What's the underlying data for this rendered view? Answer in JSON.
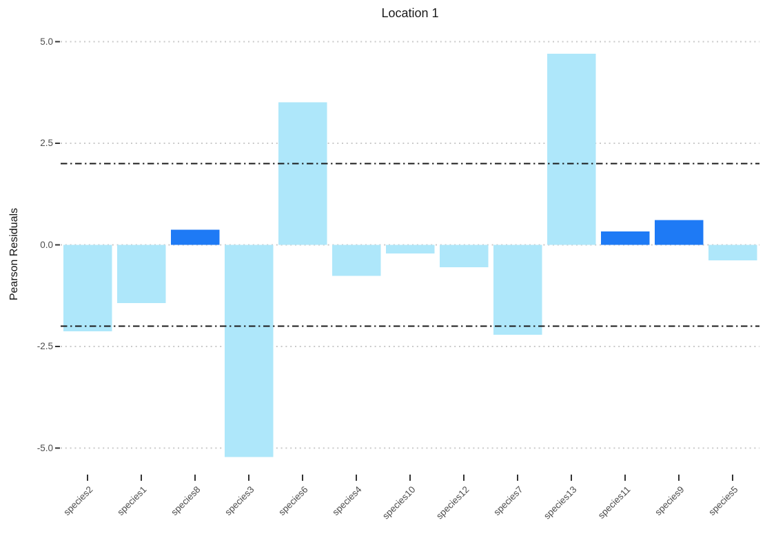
{
  "title": "Location 1",
  "y_axis": {
    "label": "Pearson Residuals",
    "tick_labels": [
      "5.0",
      "2.5",
      "0.0",
      "-2.5",
      "-5.0"
    ],
    "tick_values": [
      5.0,
      2.5,
      0.0,
      -2.5,
      -5.0
    ]
  },
  "chart_data": {
    "type": "bar",
    "title": "Location 1",
    "xlabel": "",
    "ylabel": "Pearson Residuals",
    "categories": [
      "species2",
      "species1",
      "species8",
      "species3",
      "species6",
      "species4",
      "species10",
      "species12",
      "species7",
      "species13",
      "species11",
      "species9",
      "species5"
    ],
    "values": [
      -2.13,
      -1.43,
      0.37,
      -5.22,
      3.51,
      -0.76,
      -0.21,
      -0.55,
      -2.21,
      4.7,
      0.33,
      0.61,
      -0.38
    ],
    "bar_color_keys": [
      "light",
      "light",
      "dark",
      "light",
      "light",
      "light",
      "light",
      "light",
      "light",
      "light",
      "dark",
      "dark",
      "light"
    ],
    "colors": {
      "light": "#AEE7FA",
      "dark": "#1E7AF5",
      "grid": "#C9C9C9",
      "threshold": "#1A1A1A",
      "tick_mark": "#333333",
      "tick_text": "#4D4D4D"
    },
    "ylim": [
      -5.72,
      5.2
    ],
    "y_gridlines": [
      5.0,
      2.5,
      0.0,
      -2.5,
      -5.0
    ],
    "threshold_lines": [
      2.0,
      -2.0
    ],
    "grid_style": "dotted",
    "x_tick_angle_deg": 45,
    "legend_position": "none"
  }
}
